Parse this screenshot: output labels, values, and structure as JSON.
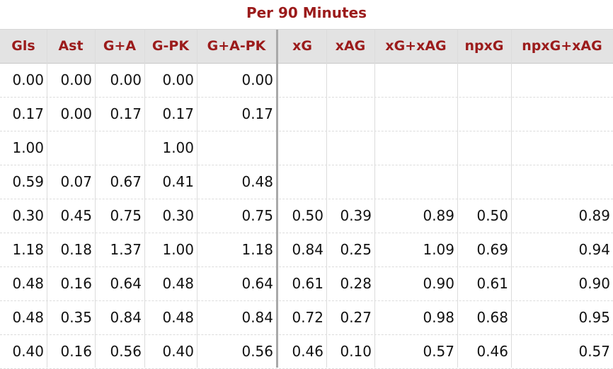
{
  "section_title": "Per 90 Minutes",
  "columns": [
    "Gls",
    "Ast",
    "G+A",
    "G-PK",
    "G+A-PK",
    "xG",
    "xAG",
    "xG+xAG",
    "npxG",
    "npxG+xAG"
  ],
  "rows": [
    [
      "0.00",
      "0.00",
      "0.00",
      "0.00",
      "0.00",
      "",
      "",
      "",
      "",
      ""
    ],
    [
      "0.17",
      "0.00",
      "0.17",
      "0.17",
      "0.17",
      "",
      "",
      "",
      "",
      ""
    ],
    [
      "1.00",
      "",
      "",
      "1.00",
      "",
      "",
      "",
      "",
      "",
      ""
    ],
    [
      "0.59",
      "0.07",
      "0.67",
      "0.41",
      "0.48",
      "",
      "",
      "",
      "",
      ""
    ],
    [
      "0.30",
      "0.45",
      "0.75",
      "0.30",
      "0.75",
      "0.50",
      "0.39",
      "0.89",
      "0.50",
      "0.89"
    ],
    [
      "1.18",
      "0.18",
      "1.37",
      "1.00",
      "1.18",
      "0.84",
      "0.25",
      "1.09",
      "0.69",
      "0.94"
    ],
    [
      "0.48",
      "0.16",
      "0.64",
      "0.48",
      "0.64",
      "0.61",
      "0.28",
      "0.90",
      "0.61",
      "0.90"
    ],
    [
      "0.48",
      "0.35",
      "0.84",
      "0.48",
      "0.84",
      "0.72",
      "0.27",
      "0.98",
      "0.68",
      "0.95"
    ],
    [
      "0.40",
      "0.16",
      "0.56",
      "0.40",
      "0.56",
      "0.46",
      "0.10",
      "0.57",
      "0.46",
      "0.57"
    ]
  ],
  "colors": {
    "header_text": "#9b1b1b",
    "header_bg": "#e3e3e3",
    "cell_text": "#111111"
  }
}
